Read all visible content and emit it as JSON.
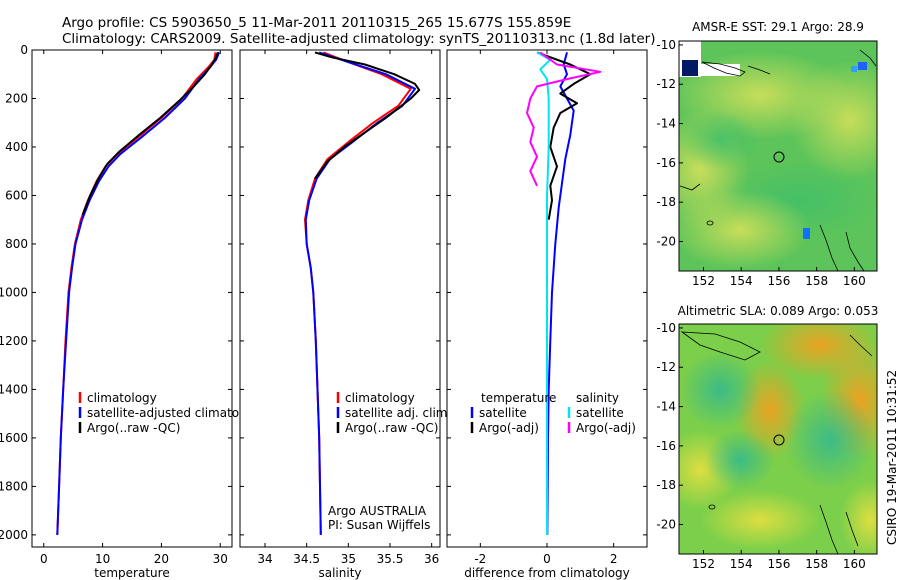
{
  "header": {
    "line1": "Argo profile: CS 5903650_5 11-Mar-2011 20110315_265 15.677S 155.859E",
    "line2": "Climatology: CARS2009. Satellite-adjusted climatology: synTS_20110313.nc (1.8d later)"
  },
  "side_label": "CSIRO 19-Mar-2011 10:31:52",
  "colors": {
    "red": "#ff0000",
    "blue": "#0000ff",
    "black": "#000000",
    "cyan": "#00e5ee",
    "magenta": "#ff00ff"
  },
  "chart_data": [
    {
      "type": "line",
      "id": "temperature",
      "xlabel": "temperature",
      "xlim": [
        -2,
        32
      ],
      "xticks": [
        0,
        10,
        20,
        30
      ],
      "ylim": [
        0,
        2050
      ],
      "yticks": [
        0,
        200,
        400,
        600,
        800,
        1000,
        1200,
        1400,
        1600,
        1800,
        2000
      ],
      "yreversed": true,
      "series": [
        {
          "name": "climatology",
          "color": "red",
          "points": [
            [
              29.2,
              10
            ],
            [
              29,
              40
            ],
            [
              28,
              70
            ],
            [
              26,
              120
            ],
            [
              23.5,
              200
            ],
            [
              20,
              280
            ],
            [
              16,
              360
            ],
            [
              12.5,
              430
            ],
            [
              10.5,
              480
            ],
            [
              9,
              540
            ],
            [
              7.5,
              620
            ],
            [
              6.3,
              700
            ],
            [
              5.3,
              800
            ],
            [
              4.7,
              900
            ],
            [
              4.2,
              1000
            ],
            [
              3.7,
              1200
            ],
            [
              3.3,
              1400
            ],
            [
              2.9,
              1600
            ],
            [
              2.6,
              1800
            ],
            [
              2.3,
              2000
            ]
          ]
        },
        {
          "name": "satellite-adjusted climatology",
          "color": "blue",
          "points": [
            [
              29.8,
              10
            ],
            [
              29.3,
              40
            ],
            [
              28.3,
              70
            ],
            [
              26.4,
              120
            ],
            [
              24,
              200
            ],
            [
              20.6,
              280
            ],
            [
              16.6,
              360
            ],
            [
              13,
              430
            ],
            [
              11,
              480
            ],
            [
              9.4,
              540
            ],
            [
              7.8,
              620
            ],
            [
              6.5,
              700
            ],
            [
              5.4,
              800
            ],
            [
              4.8,
              900
            ],
            [
              4.3,
              1000
            ],
            [
              3.8,
              1200
            ],
            [
              3.3,
              1400
            ],
            [
              2.9,
              1600
            ],
            [
              2.6,
              1800
            ],
            [
              2.3,
              2000
            ]
          ]
        },
        {
          "name": "Argo(..raw -QC)",
          "color": "black",
          "points": [
            [
              29.6,
              10
            ],
            [
              29.3,
              30
            ],
            [
              28.6,
              60
            ],
            [
              27.4,
              100
            ],
            [
              25.5,
              150
            ],
            [
              23,
              210
            ],
            [
              19.8,
              280
            ],
            [
              16.2,
              350
            ],
            [
              12.8,
              420
            ],
            [
              10.8,
              470
            ],
            [
              9.3,
              530
            ],
            [
              7.9,
              600
            ],
            [
              6.6,
              680
            ]
          ]
        }
      ],
      "legend": [
        "climatology",
        "satellite-adjusted climatology",
        "Argo(..raw -QC)"
      ],
      "legend_loc": "bottom-center"
    },
    {
      "type": "line",
      "id": "salinity",
      "xlabel": "salinity",
      "xlim": [
        33.7,
        36.1
      ],
      "xticks": [
        34,
        34.5,
        35,
        35.5,
        36
      ],
      "ylim": [
        0,
        2050
      ],
      "yreversed": true,
      "series": [
        {
          "name": "climatology",
          "color": "red",
          "points": [
            [
              34.7,
              10
            ],
            [
              35.0,
              50
            ],
            [
              35.4,
              100
            ],
            [
              35.75,
              160
            ],
            [
              35.6,
              230
            ],
            [
              35.3,
              300
            ],
            [
              35.0,
              380
            ],
            [
              34.75,
              450
            ],
            [
              34.6,
              530
            ],
            [
              34.52,
              620
            ],
            [
              34.48,
              700
            ],
            [
              34.5,
              800
            ],
            [
              34.55,
              900
            ],
            [
              34.58,
              1000
            ],
            [
              34.61,
              1200
            ],
            [
              34.63,
              1400
            ],
            [
              34.65,
              1600
            ],
            [
              34.66,
              1800
            ],
            [
              34.67,
              2000
            ]
          ]
        },
        {
          "name": "satellite adj. clim.",
          "color": "blue",
          "points": [
            [
              34.65,
              10
            ],
            [
              35.0,
              50
            ],
            [
              35.45,
              100
            ],
            [
              35.8,
              160
            ],
            [
              35.65,
              230
            ],
            [
              35.35,
              300
            ],
            [
              35.05,
              380
            ],
            [
              34.78,
              450
            ],
            [
              34.62,
              530
            ],
            [
              34.53,
              620
            ],
            [
              34.49,
              700
            ],
            [
              34.5,
              800
            ],
            [
              34.55,
              900
            ],
            [
              34.58,
              1000
            ],
            [
              34.61,
              1200
            ],
            [
              34.63,
              1400
            ],
            [
              34.65,
              1600
            ],
            [
              34.66,
              1800
            ],
            [
              34.67,
              2000
            ]
          ]
        },
        {
          "name": "Argo(..raw -QC)",
          "color": "black",
          "points": [
            [
              34.6,
              10
            ],
            [
              34.8,
              30
            ],
            [
              35.2,
              60
            ],
            [
              35.55,
              100
            ],
            [
              35.8,
              140
            ],
            [
              35.85,
              165
            ],
            [
              35.75,
              200
            ],
            [
              35.6,
              240
            ],
            [
              35.45,
              280
            ],
            [
              35.2,
              340
            ],
            [
              34.95,
              400
            ],
            [
              34.75,
              460
            ],
            [
              34.6,
              530
            ]
          ]
        }
      ],
      "legend": [
        "climatology",
        "satellite adj. clim.",
        "Argo(..raw -QC)"
      ],
      "legend_loc": "bottom-center",
      "annotation": [
        "Argo AUSTRALIA",
        "PI: Susan Wijffels"
      ]
    },
    {
      "type": "line",
      "id": "difference",
      "xlabel": "difference from climatology",
      "xlim": [
        -3,
        3
      ],
      "xticks": [
        -2,
        0,
        2
      ],
      "ylim": [
        0,
        2050
      ],
      "yreversed": true,
      "series": [
        {
          "name": "temperature satellite",
          "color": "blue",
          "points": [
            [
              0.6,
              10
            ],
            [
              0.5,
              60
            ],
            [
              0.6,
              100
            ],
            [
              0.4,
              150
            ],
            [
              0.8,
              250
            ],
            [
              0.7,
              350
            ],
            [
              0.55,
              450
            ],
            [
              0.45,
              550
            ],
            [
              0.35,
              650
            ],
            [
              0.25,
              800
            ],
            [
              0.15,
              1000
            ],
            [
              0.1,
              1200
            ],
            [
              0.05,
              1400
            ],
            [
              0.03,
              1600
            ],
            [
              0.02,
              1800
            ],
            [
              0.01,
              2000
            ]
          ]
        },
        {
          "name": "temperature Argo(-adj)",
          "color": "black",
          "points": [
            [
              -0.3,
              10
            ],
            [
              0.7,
              60
            ],
            [
              1.3,
              100
            ],
            [
              0.8,
              140
            ],
            [
              0.4,
              180
            ],
            [
              0.9,
              220
            ],
            [
              0.4,
              260
            ],
            [
              0.2,
              320
            ],
            [
              0.1,
              400
            ],
            [
              0.3,
              480
            ],
            [
              0.1,
              560
            ],
            [
              0.15,
              620
            ],
            [
              0.05,
              700
            ]
          ]
        },
        {
          "name": "salinity satellite",
          "color": "cyan",
          "points": [
            [
              -0.3,
              10
            ],
            [
              0.1,
              40
            ],
            [
              -0.2,
              80
            ],
            [
              0,
              120
            ],
            [
              0.05,
              200
            ],
            [
              0.05,
              400
            ],
            [
              0.0,
              600
            ],
            [
              0.0,
              800
            ],
            [
              0.0,
              1000
            ],
            [
              0.0,
              1200
            ],
            [
              0.0,
              1400
            ],
            [
              0.0,
              1600
            ],
            [
              0.0,
              1800
            ],
            [
              0.0,
              2000
            ]
          ]
        },
        {
          "name": "salinity Argo(-adj)",
          "color": "magenta",
          "points": [
            [
              -0.2,
              10
            ],
            [
              0.3,
              60
            ],
            [
              1.6,
              90
            ],
            [
              0.6,
              120
            ],
            [
              -0.3,
              150
            ],
            [
              -0.5,
              200
            ],
            [
              -0.6,
              260
            ],
            [
              -0.4,
              320
            ],
            [
              -0.5,
              380
            ],
            [
              -0.3,
              440
            ],
            [
              -0.5,
              500
            ],
            [
              -0.3,
              560
            ]
          ]
        }
      ],
      "legend_groups": [
        {
          "title": "temperature",
          "items": [
            "satellite",
            "Argo(-adj)"
          ]
        },
        {
          "title": "salinity",
          "items": [
            "satellite",
            "Argo(-adj)"
          ]
        }
      ],
      "legend_loc": "center"
    },
    {
      "type": "heatmap",
      "id": "sst-map",
      "title": "AMSR-E SST: 29.1  Argo: 28.9",
      "xlim": [
        150.7,
        161.2
      ],
      "xticks": [
        152,
        154,
        156,
        158,
        160
      ],
      "ylim": [
        -21.5,
        -9.8
      ],
      "yticks": [
        -10,
        -12,
        -14,
        -16,
        -18,
        -20
      ],
      "marker": {
        "lon": 155.86,
        "lat": -15.68
      }
    },
    {
      "type": "heatmap",
      "id": "sla-map",
      "title": "Altimetric SLA: 0.089  Argo: 0.053",
      "xlim": [
        150.7,
        161.2
      ],
      "xticks": [
        152,
        154,
        156,
        158,
        160
      ],
      "ylim": [
        -21.5,
        -9.8
      ],
      "yticks": [
        -10,
        -12,
        -14,
        -16,
        -18,
        -20
      ],
      "marker": {
        "lon": 155.86,
        "lat": -15.68
      }
    }
  ]
}
